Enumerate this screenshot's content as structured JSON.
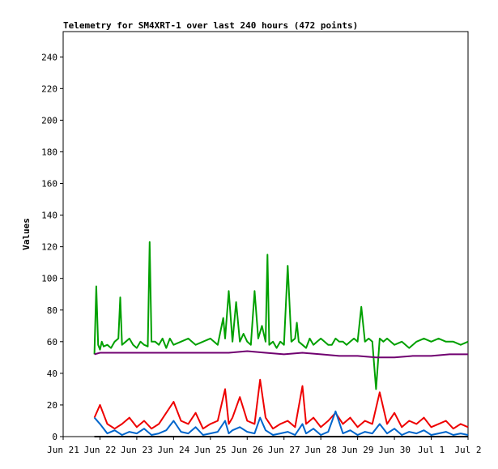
{
  "chart_data": {
    "type": "line",
    "title": "Telemetry for SM4XRT-1 over last 240 hours (472 points)",
    "ylabel": "Values",
    "xlabel": "",
    "ylim": [
      0,
      256
    ],
    "xlim": [
      0,
      11
    ],
    "y_ticks": [
      0,
      20,
      40,
      60,
      80,
      100,
      120,
      140,
      160,
      180,
      200,
      220,
      240
    ],
    "x_ticks": [
      {
        "x": 0,
        "label": "Jun 21"
      },
      {
        "x": 1,
        "label": "Jun 22"
      },
      {
        "x": 2,
        "label": "Jun 23"
      },
      {
        "x": 3,
        "label": "Jun 24"
      },
      {
        "x": 4,
        "label": "Jun 25"
      },
      {
        "x": 5,
        "label": "Jun 26"
      },
      {
        "x": 6,
        "label": "Jun 27"
      },
      {
        "x": 7,
        "label": "Jun 28"
      },
      {
        "x": 8,
        "label": "Jun 29"
      },
      {
        "x": 9,
        "label": "Jun 30"
      },
      {
        "x": 10,
        "label": "Jul 1"
      },
      {
        "x": 11,
        "label": "Jul 2"
      }
    ],
    "grid": false,
    "legend": "none",
    "series": [
      {
        "color": "#00a000",
        "x": [
          0.85,
          0.9,
          0.95,
          1.0,
          1.05,
          1.1,
          1.2,
          1.3,
          1.4,
          1.5,
          1.55,
          1.6,
          1.7,
          1.8,
          1.9,
          2.0,
          2.1,
          2.2,
          2.3,
          2.35,
          2.4,
          2.5,
          2.6,
          2.7,
          2.8,
          2.9,
          3.0,
          3.2,
          3.4,
          3.6,
          3.8,
          4.0,
          4.2,
          4.35,
          4.4,
          4.5,
          4.6,
          4.7,
          4.8,
          4.9,
          5.0,
          5.1,
          5.2,
          5.3,
          5.4,
          5.5,
          5.55,
          5.6,
          5.7,
          5.8,
          5.9,
          6.0,
          6.1,
          6.2,
          6.3,
          6.35,
          6.4,
          6.5,
          6.6,
          6.7,
          6.8,
          6.9,
          7.0,
          7.1,
          7.2,
          7.3,
          7.4,
          7.5,
          7.6,
          7.7,
          7.8,
          7.9,
          8.0,
          8.1,
          8.2,
          8.3,
          8.4,
          8.5,
          8.6,
          8.7,
          8.8,
          8.9,
          9.0,
          9.2,
          9.4,
          9.6,
          9.8,
          10.0,
          10.2,
          10.4,
          10.6,
          10.8,
          11.0
        ],
        "values": [
          52,
          95,
          58,
          55,
          60,
          57,
          58,
          56,
          60,
          62,
          88,
          58,
          60,
          62,
          58,
          56,
          60,
          58,
          57,
          123,
          60,
          60,
          58,
          62,
          56,
          62,
          58,
          60,
          62,
          58,
          60,
          62,
          58,
          75,
          62,
          92,
          60,
          85,
          60,
          65,
          60,
          58,
          92,
          62,
          70,
          60,
          115,
          58,
          60,
          56,
          60,
          58,
          108,
          60,
          62,
          72,
          60,
          58,
          56,
          62,
          58,
          60,
          62,
          60,
          58,
          58,
          62,
          60,
          60,
          58,
          60,
          62,
          60,
          82,
          60,
          62,
          60,
          30,
          62,
          60,
          62,
          60,
          58,
          60,
          56,
          60,
          62,
          60,
          62,
          60,
          60,
          58,
          60
        ]
      },
      {
        "color": "#700070",
        "x": [
          0.85,
          1.0,
          1.5,
          2.0,
          2.5,
          3.0,
          3.5,
          4.0,
          4.5,
          5.0,
          5.5,
          6.0,
          6.5,
          7.0,
          7.5,
          8.0,
          8.5,
          9.0,
          9.5,
          10.0,
          10.5,
          11.0
        ],
        "values": [
          52,
          53,
          53,
          53,
          53,
          53,
          53,
          53,
          53,
          54,
          53,
          52,
          53,
          52,
          51,
          51,
          50,
          50,
          51,
          51,
          52,
          52
        ]
      },
      {
        "color": "#ee0000",
        "x": [
          0.85,
          1.0,
          1.2,
          1.4,
          1.6,
          1.8,
          2.0,
          2.2,
          2.4,
          2.6,
          2.8,
          3.0,
          3.2,
          3.4,
          3.6,
          3.8,
          4.0,
          4.2,
          4.4,
          4.5,
          4.6,
          4.8,
          5.0,
          5.2,
          5.35,
          5.5,
          5.7,
          5.9,
          6.1,
          6.3,
          6.5,
          6.6,
          6.8,
          7.0,
          7.2,
          7.4,
          7.6,
          7.8,
          8.0,
          8.2,
          8.4,
          8.6,
          8.8,
          9.0,
          9.2,
          9.4,
          9.6,
          9.8,
          10.0,
          10.2,
          10.4,
          10.6,
          10.8,
          11.0
        ],
        "values": [
          12,
          20,
          8,
          5,
          8,
          12,
          6,
          10,
          5,
          8,
          15,
          22,
          10,
          8,
          15,
          5,
          8,
          10,
          30,
          8,
          12,
          25,
          10,
          8,
          36,
          12,
          5,
          8,
          10,
          6,
          32,
          8,
          12,
          6,
          10,
          15,
          8,
          12,
          6,
          10,
          8,
          28,
          8,
          15,
          6,
          10,
          8,
          12,
          6,
          8,
          10,
          5,
          8,
          6
        ]
      },
      {
        "color": "#0066cc",
        "x": [
          0.85,
          1.0,
          1.2,
          1.4,
          1.6,
          1.8,
          2.0,
          2.2,
          2.4,
          2.6,
          2.8,
          3.0,
          3.2,
          3.4,
          3.6,
          3.8,
          4.0,
          4.2,
          4.4,
          4.5,
          4.6,
          4.8,
          5.0,
          5.2,
          5.35,
          5.5,
          5.7,
          5.9,
          6.1,
          6.3,
          6.5,
          6.6,
          6.8,
          7.0,
          7.2,
          7.4,
          7.6,
          7.8,
          8.0,
          8.2,
          8.4,
          8.6,
          8.8,
          9.0,
          9.2,
          9.4,
          9.6,
          9.8,
          10.0,
          10.2,
          10.4,
          10.6,
          10.8,
          11.0
        ],
        "values": [
          12,
          8,
          2,
          4,
          1,
          3,
          2,
          5,
          1,
          2,
          4,
          10,
          3,
          2,
          6,
          1,
          2,
          3,
          10,
          2,
          4,
          6,
          3,
          2,
          12,
          4,
          1,
          2,
          3,
          1,
          8,
          2,
          5,
          1,
          3,
          16,
          2,
          4,
          1,
          3,
          2,
          8,
          2,
          5,
          1,
          3,
          2,
          4,
          1,
          2,
          3,
          1,
          2,
          1
        ]
      },
      {
        "color": "#000000",
        "x": [
          0.85,
          11.0
        ],
        "values": [
          0,
          0
        ]
      }
    ]
  }
}
